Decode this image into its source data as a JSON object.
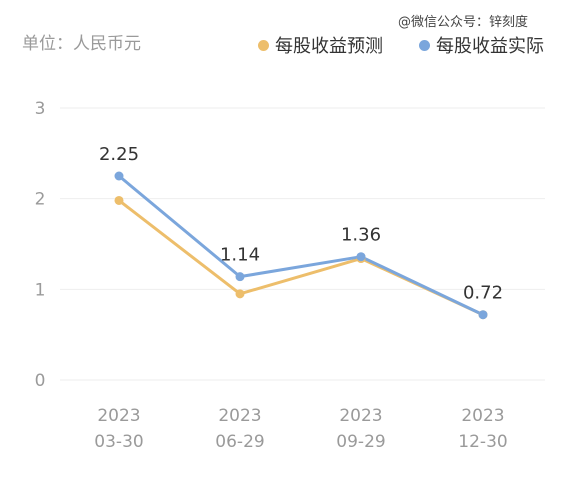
{
  "header": {
    "unit_label": "单位：人民币元",
    "watermark": "@微信公众号：锌刻度"
  },
  "chart_data": {
    "type": "line",
    "categories": [
      [
        "2023",
        "03-30"
      ],
      [
        "2023",
        "06-29"
      ],
      [
        "2023",
        "09-29"
      ],
      [
        "2023",
        "12-30"
      ]
    ],
    "series": [
      {
        "name": "每股收益预测",
        "color": "#EDBE6B",
        "values": [
          1.98,
          0.95,
          1.34,
          0.72
        ]
      },
      {
        "name": "每股收益实际",
        "color": "#7BA6DC",
        "values": [
          2.25,
          1.14,
          1.36,
          0.72
        ]
      }
    ],
    "data_labels": [
      "2.25",
      "1.14",
      "1.36",
      "0.72"
    ],
    "yticks": [
      "0",
      "1",
      "2",
      "3"
    ],
    "ylim": [
      0,
      3
    ],
    "grid": true,
    "legend_position": "top-right"
  }
}
